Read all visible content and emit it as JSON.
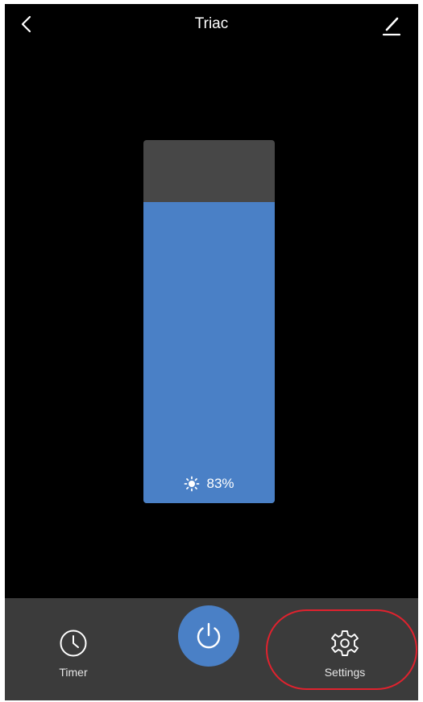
{
  "header": {
    "title": "Triac",
    "back_icon": "chevron-left-icon",
    "edit_icon": "pencil-icon"
  },
  "brightness": {
    "level_text": "83%",
    "level_fraction": 0.83,
    "icon": "sun-icon"
  },
  "bottom_bar": {
    "timer_label": "Timer",
    "timer_icon": "clock-icon",
    "power_icon": "power-icon",
    "settings_label": "Settings",
    "settings_icon": "gear-icon"
  },
  "colors": {
    "accent": "#4a80c6",
    "background": "#000000",
    "slider_track": "#474747",
    "bottom_bar": "#3b3b3b",
    "highlight": "#e0222e"
  }
}
